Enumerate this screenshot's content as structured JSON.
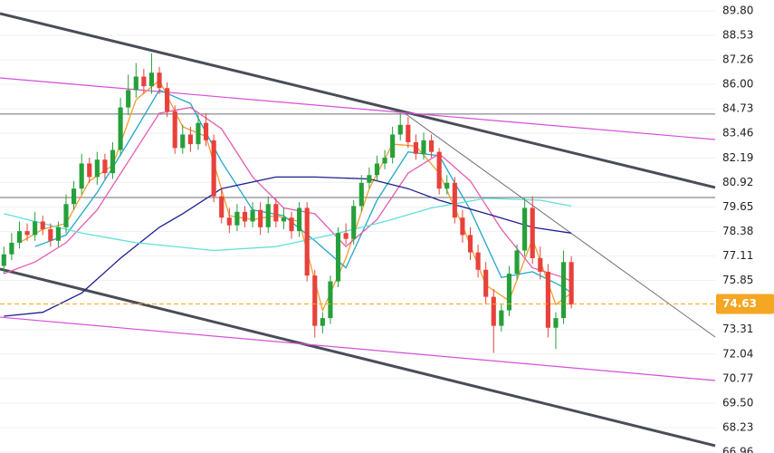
{
  "chart_data": {
    "type": "candlestick",
    "up_color": "#26a03a",
    "down_color": "#e8413b",
    "open": [
      76.6,
      77.2,
      77.8,
      78.4,
      78.2,
      78.9,
      78.5,
      77.9,
      78.6,
      79.8,
      80.6,
      81.9,
      81.2,
      82.1,
      81.4,
      82.6,
      84.8,
      85.7,
      86.4,
      85.9,
      86.6,
      85.8,
      84.6,
      82.7,
      83.4,
      82.9,
      84.0,
      83.1,
      80.2,
      79.1,
      78.7,
      79.4,
      78.9,
      79.5,
      78.6,
      79.8,
      78.9,
      79.1,
      78.4,
      79.6,
      76.1,
      73.5,
      73.9,
      75.8,
      78.3,
      78.0,
      79.7,
      80.9,
      81.3,
      81.9,
      82.2,
      83.4,
      83.9,
      83.0,
      82.4,
      83.1,
      82.5,
      80.6,
      80.9,
      79.1,
      78.2,
      77.3,
      76.4,
      75.0,
      73.5,
      74.3,
      76.2,
      77.4,
      79.6,
      77.0,
      76.3,
      73.4,
      73.9,
      76.8
    ],
    "high": [
      77.6,
      78.3,
      78.9,
      78.8,
      79.4,
      79.2,
      78.8,
      78.9,
      80.3,
      81.0,
      82.4,
      82.2,
      82.5,
      82.4,
      83.0,
      85.3,
      86.5,
      87.1,
      86.8,
      87.6,
      86.9,
      86.1,
      84.9,
      83.9,
      83.8,
      84.4,
      84.5,
      83.4,
      80.6,
      79.6,
      79.8,
      79.7,
      79.9,
      79.9,
      80.2,
      80.1,
      79.6,
      79.4,
      79.9,
      79.9,
      76.4,
      74.2,
      76.1,
      78.6,
      78.8,
      80.0,
      81.3,
      81.7,
      82.3,
      82.6,
      83.8,
      84.5,
      84.3,
      83.4,
      83.5,
      83.4,
      82.7,
      81.3,
      81.2,
      79.5,
      78.6,
      77.7,
      76.8,
      75.4,
      74.6,
      76.6,
      77.7,
      80.1,
      80.2,
      77.6,
      76.7,
      74.2,
      77.4,
      77.1
    ],
    "low": [
      76.2,
      76.9,
      77.5,
      77.9,
      77.9,
      78.2,
      77.6,
      77.6,
      78.3,
      79.5,
      80.3,
      80.9,
      80.8,
      81.1,
      81.1,
      82.3,
      84.4,
      85.3,
      85.5,
      85.5,
      85.5,
      84.3,
      82.4,
      82.4,
      82.5,
      82.6,
      82.8,
      79.9,
      78.8,
      78.3,
      78.4,
      78.6,
      78.6,
      78.2,
      78.3,
      78.6,
      78.5,
      78.0,
      78.1,
      75.8,
      72.9,
      73.1,
      73.6,
      75.5,
      77.7,
      77.7,
      79.4,
      80.6,
      81.0,
      81.6,
      81.9,
      83.1,
      82.7,
      82.1,
      82.1,
      82.2,
      80.3,
      80.3,
      78.8,
      77.8,
      76.9,
      76.0,
      74.6,
      72.1,
      73.2,
      74.0,
      75.9,
      77.1,
      76.7,
      75.9,
      72.9,
      72.3,
      73.6,
      74.4
    ],
    "close": [
      77.2,
      77.8,
      78.4,
      78.2,
      78.9,
      78.5,
      77.9,
      78.6,
      79.8,
      80.6,
      81.9,
      81.2,
      82.1,
      81.4,
      82.6,
      84.8,
      85.7,
      86.4,
      85.9,
      86.6,
      85.8,
      84.6,
      82.7,
      83.4,
      82.9,
      84.0,
      83.1,
      80.2,
      79.1,
      78.7,
      79.4,
      78.9,
      79.5,
      78.6,
      79.8,
      78.9,
      79.1,
      78.4,
      79.6,
      76.1,
      73.5,
      73.9,
      75.8,
      78.3,
      78.0,
      79.7,
      80.9,
      81.3,
      81.9,
      82.2,
      83.4,
      83.9,
      83.0,
      82.4,
      83.1,
      82.5,
      80.6,
      80.9,
      79.1,
      78.2,
      77.3,
      76.4,
      75.0,
      73.5,
      74.3,
      76.2,
      77.4,
      79.6,
      77.0,
      76.3,
      73.4,
      73.9,
      76.8,
      74.6
    ],
    "moving_averages": [
      {
        "color": "#f39c2b",
        "x": [
          2,
          5,
          8,
          11,
          14,
          17,
          20,
          23,
          26,
          29,
          32,
          35,
          38,
          41,
          44,
          47,
          50,
          53,
          56,
          59,
          62,
          65,
          68,
          71,
          73
        ],
        "values": [
          77.8,
          78.5,
          78.8,
          81.0,
          81.8,
          85.2,
          86.2,
          83.8,
          83.3,
          79.2,
          79.0,
          79.2,
          78.9,
          74.3,
          77.0,
          80.6,
          82.9,
          82.8,
          81.4,
          78.7,
          75.6,
          74.8,
          78.0,
          74.6,
          75.2
        ]
      },
      {
        "color": "#22a6c8",
        "x": [
          4,
          8,
          12,
          16,
          20,
          24,
          28,
          32,
          36,
          40,
          44,
          48,
          52,
          56,
          60,
          64,
          68,
          72,
          73
        ],
        "values": [
          77.6,
          78.2,
          80.4,
          83.0,
          85.7,
          85.0,
          82.0,
          79.5,
          79.2,
          77.9,
          76.5,
          80.0,
          82.5,
          82.3,
          79.5,
          76.0,
          76.3,
          75.5,
          75.2
        ]
      },
      {
        "color": "#e45bb0",
        "x": [
          0,
          4,
          8,
          12,
          16,
          20,
          24,
          28,
          32,
          36,
          40,
          44,
          48,
          52,
          56,
          60,
          64,
          68,
          72,
          73
        ],
        "values": [
          76.2,
          76.8,
          77.8,
          79.5,
          82.0,
          84.5,
          84.8,
          83.7,
          81.2,
          79.6,
          79.3,
          77.6,
          79.0,
          81.4,
          82.4,
          81.0,
          78.5,
          76.5,
          76.0,
          75.8
        ]
      },
      {
        "color": "#1f1f8f",
        "x": [
          0,
          5,
          10,
          15,
          20,
          23,
          28,
          35,
          40,
          47,
          52,
          56,
          63,
          68,
          73
        ],
        "values": [
          74.0,
          74.2,
          75.2,
          77.0,
          78.6,
          79.3,
          80.6,
          81.2,
          81.2,
          81.1,
          80.6,
          80.0,
          79.2,
          78.6,
          78.3
        ]
      },
      {
        "color": "#5fe0d8",
        "x": [
          0,
          10,
          17,
          27,
          35,
          42,
          49,
          55,
          62,
          69,
          73
        ],
        "values": [
          79.3,
          78.3,
          77.8,
          77.4,
          77.6,
          78.2,
          78.9,
          79.6,
          80.1,
          80.0,
          79.7
        ]
      }
    ],
    "trend_lines": [
      {
        "color": "#4a4d57",
        "width": 3,
        "x": [
          0,
          92
        ],
        "y": [
          89.66,
          80.66
        ]
      },
      {
        "color": "#4a4d57",
        "width": 3,
        "x": [
          0,
          92
        ],
        "y": [
          76.44,
          67.3
        ]
      },
      {
        "color": "#d84fd8",
        "width": 1.2,
        "x": [
          0,
          92
        ],
        "y": [
          86.33,
          83.14
        ]
      },
      {
        "color": "#d84fd8",
        "width": 1.2,
        "x": [
          0,
          92
        ],
        "y": [
          73.95,
          70.67
        ]
      },
      {
        "color": "#6b6e78",
        "width": 1,
        "x": [
          52.2,
          92
        ],
        "y": [
          84.46,
          72.92
        ]
      }
    ],
    "horizontal_lines": [
      {
        "value": 84.46,
        "color": "#6b6e78"
      },
      {
        "value": 80.14,
        "color": "#6b6e78"
      }
    ],
    "last_price": 74.63,
    "last_price_color": "#f5a623",
    "xlim": [
      0,
      92
    ],
    "ylim": [
      66.92,
      90.36
    ],
    "yticks": [
      {
        "value": 89.8,
        "label": "89.80"
      },
      88.53,
      87.26,
      {
        "value": 86.0,
        "label": "86.00"
      },
      84.73,
      83.46,
      82.19,
      80.92,
      79.65,
      78.38,
      77.11,
      75.85,
      73.31,
      72.04,
      70.77,
      {
        "value": 69.5,
        "label": "69.50"
      },
      68.23,
      66.96
    ],
    "grid": true
  }
}
